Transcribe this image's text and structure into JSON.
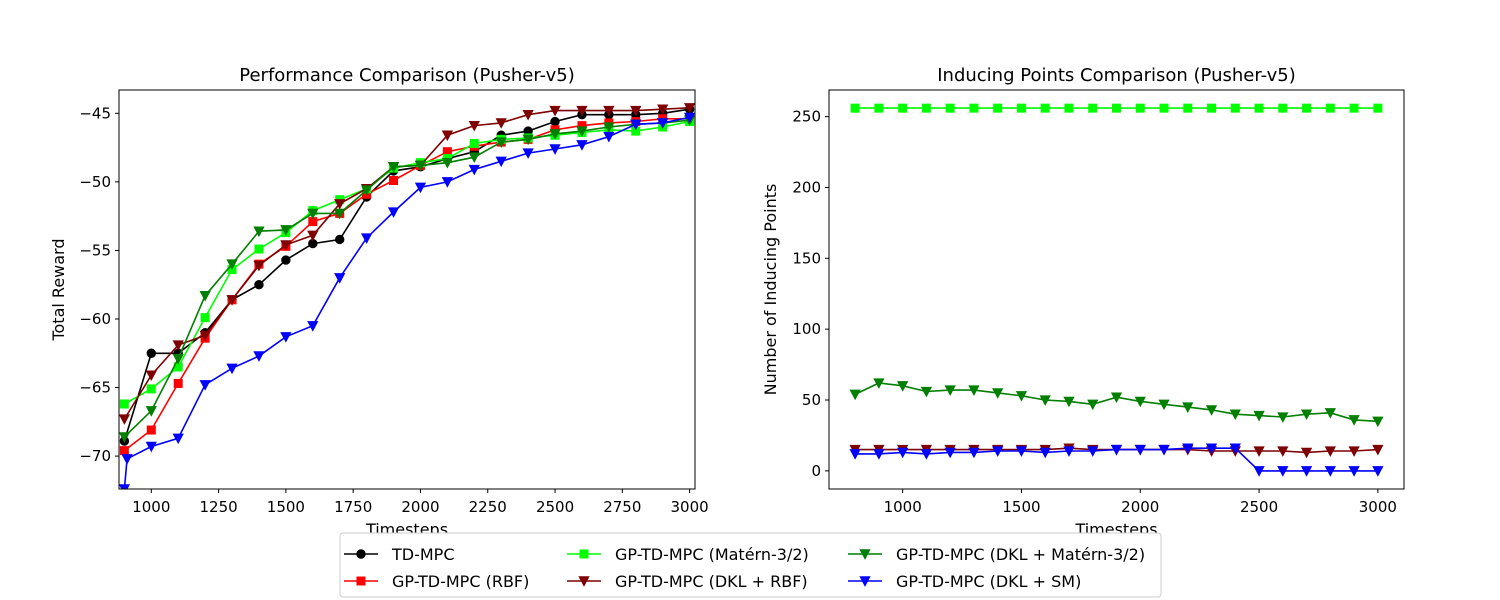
{
  "chart_data": [
    {
      "type": "line",
      "title": "Performance Comparison (Pusher-v5)",
      "xlabel": "Timesteps",
      "ylabel": "Total Reward",
      "xlim": [
        880,
        3020
      ],
      "ylim": [
        -72.4,
        -43.3
      ],
      "xticks": [
        1000,
        1250,
        1500,
        1750,
        2000,
        2250,
        2500,
        2750,
        3000
      ],
      "xtick_labels": [
        "1000",
        "1250",
        "1500",
        "1750",
        "2000",
        "2250",
        "2500",
        "2750",
        "3000"
      ],
      "yticks": [
        -70,
        -65,
        -60,
        -55,
        -50,
        -45
      ],
      "ytick_labels": [
        "−70",
        "−65",
        "−60",
        "−55",
        "−50",
        "−45"
      ],
      "grid": false,
      "series": [
        {
          "name": "TD-MPC",
          "color": "#000000",
          "marker": "circle",
          "x": [
            900,
            1000,
            1100,
            1200,
            1300,
            1400,
            1500,
            1600,
            1700,
            1800,
            1900,
            2000,
            2100,
            2200,
            2300,
            2400,
            2500,
            2600,
            2700,
            2800,
            2900,
            3000
          ],
          "y": [
            -68.9,
            -62.5,
            -62.5,
            -61.0,
            -58.6,
            -57.5,
            -55.7,
            -54.5,
            -54.2,
            -51.1,
            -49.2,
            -48.9,
            -48.3,
            -47.8,
            -46.6,
            -46.3,
            -45.6,
            -45.1,
            -45.1,
            -45.1,
            -45.0,
            -44.7
          ]
        },
        {
          "name": "GP-TD-MPC (RBF)",
          "color": "#ff0000",
          "marker": "square",
          "x": [
            900,
            1000,
            1100,
            1200,
            1300,
            1400,
            1500,
            1600,
            1700,
            1800,
            1900,
            2000,
            2100,
            2200,
            2300,
            2400,
            2500,
            2600,
            2700,
            2800,
            2900,
            3000
          ],
          "y": [
            -69.6,
            -68.1,
            -64.7,
            -61.4,
            -58.6,
            -56.0,
            -54.7,
            -52.9,
            -52.3,
            -50.9,
            -49.9,
            -48.8,
            -47.8,
            -47.4,
            -47.1,
            -46.9,
            -46.2,
            -45.9,
            -45.7,
            -45.6,
            -45.4,
            -45.4
          ]
        },
        {
          "name": "GP-TD-MPC (Matérn-3/2)",
          "color": "#00ff00",
          "marker": "square",
          "x": [
            900,
            1000,
            1100,
            1200,
            1300,
            1400,
            1500,
            1600,
            1700,
            1800,
            1900,
            2000,
            2100,
            2200,
            2300,
            2400,
            2500,
            2600,
            2700,
            2800,
            2900,
            3000
          ],
          "y": [
            -66.2,
            -65.1,
            -63.5,
            -59.9,
            -56.4,
            -54.9,
            -53.7,
            -52.1,
            -51.3,
            -50.5,
            -49.0,
            -48.6,
            -48.3,
            -47.2,
            -46.9,
            -46.8,
            -46.6,
            -46.4,
            -46.2,
            -46.3,
            -46.0,
            -45.6
          ]
        },
        {
          "name": "GP-TD-MPC (DKL + RBF)",
          "color": "#7f0000",
          "marker": "triangle-down",
          "x": [
            900,
            1000,
            1100,
            1200,
            1300,
            1400,
            1500,
            1600,
            1700,
            1800,
            1900,
            2000,
            2100,
            2200,
            2300,
            2400,
            2500,
            2600,
            2700,
            2800,
            2900,
            3000
          ],
          "y": [
            -67.3,
            -64.1,
            -61.9,
            -61.2,
            -58.6,
            -56.1,
            -54.6,
            -53.9,
            -51.6,
            -50.5,
            -48.9,
            -48.8,
            -46.6,
            -45.9,
            -45.7,
            -45.1,
            -44.8,
            -44.8,
            -44.8,
            -44.8,
            -44.7,
            -44.6
          ]
        },
        {
          "name": "GP-TD-MPC (DKL + Matérn-3/2)",
          "color": "#007f00",
          "marker": "triangle-down",
          "x": [
            900,
            1000,
            1100,
            1200,
            1300,
            1400,
            1500,
            1600,
            1700,
            1800,
            1900,
            2000,
            2100,
            2200,
            2300,
            2400,
            2500,
            2600,
            2700,
            2800,
            2900,
            3000
          ],
          "y": [
            -68.6,
            -66.7,
            -62.9,
            -58.3,
            -56.0,
            -53.6,
            -53.5,
            -52.3,
            -52.3,
            -50.6,
            -48.9,
            -48.8,
            -48.6,
            -48.2,
            -47.1,
            -46.9,
            -46.5,
            -46.3,
            -46.0,
            -45.8,
            -45.7,
            -45.5
          ]
        },
        {
          "name": "GP-TD-MPC (DKL + SM)",
          "color": "#0000ff",
          "marker": "triangle-down",
          "x": [
            900,
            910,
            1000,
            1100,
            1200,
            1300,
            1400,
            1500,
            1600,
            1700,
            1800,
            1900,
            2000,
            2100,
            2200,
            2300,
            2400,
            2500,
            2600,
            2700,
            2800,
            2900,
            3000
          ],
          "y": [
            -72.4,
            -70.2,
            -69.3,
            -68.7,
            -64.8,
            -63.6,
            -62.7,
            -61.3,
            -60.5,
            -57.0,
            -54.1,
            -52.2,
            -50.4,
            -50.0,
            -49.1,
            -48.5,
            -47.9,
            -47.6,
            -47.3,
            -46.7,
            -45.8,
            -45.7,
            -45.3
          ]
        }
      ]
    },
    {
      "type": "line",
      "title": "Inducing Points Comparison (Pusher-v5)",
      "xlabel": "Timesteps",
      "ylabel": "Number of Inducing Points",
      "xlim": [
        690,
        3110
      ],
      "ylim": [
        -12.8,
        268.8
      ],
      "xticks": [
        1000,
        1500,
        2000,
        2500,
        3000
      ],
      "xtick_labels": [
        "1000",
        "1500",
        "2000",
        "2500",
        "3000"
      ],
      "yticks": [
        0,
        50,
        100,
        150,
        200,
        250
      ],
      "ytick_labels": [
        "0",
        "50",
        "100",
        "150",
        "200",
        "250"
      ],
      "grid": false,
      "series": [
        {
          "name": "GP-TD-MPC (Matérn-3/2)",
          "color": "#00ff00",
          "marker": "square",
          "x": [
            800,
            900,
            1000,
            1100,
            1200,
            1300,
            1400,
            1500,
            1600,
            1700,
            1800,
            1900,
            2000,
            2100,
            2200,
            2300,
            2400,
            2500,
            2600,
            2700,
            2800,
            2900,
            3000
          ],
          "y": [
            256,
            256,
            256,
            256,
            256,
            256,
            256,
            256,
            256,
            256,
            256,
            256,
            256,
            256,
            256,
            256,
            256,
            256,
            256,
            256,
            256,
            256,
            256
          ]
        },
        {
          "name": "GP-TD-MPC (DKL + Matérn-3/2)",
          "color": "#007f00",
          "marker": "triangle-down",
          "x": [
            800,
            900,
            1000,
            1100,
            1200,
            1300,
            1400,
            1500,
            1600,
            1700,
            1800,
            1900,
            2000,
            2100,
            2200,
            2300,
            2400,
            2500,
            2600,
            2700,
            2800,
            2900,
            3000
          ],
          "y": [
            54,
            62,
            60,
            56,
            57,
            57,
            55,
            53,
            50,
            49,
            47,
            52,
            49,
            47,
            45,
            43,
            40,
            39,
            38,
            40,
            41,
            36,
            35
          ]
        },
        {
          "name": "GP-TD-MPC (DKL + RBF)",
          "color": "#7f0000",
          "marker": "triangle-down",
          "x": [
            800,
            900,
            1000,
            1100,
            1200,
            1300,
            1400,
            1500,
            1600,
            1700,
            1800,
            1900,
            2000,
            2100,
            2200,
            2300,
            2400,
            2500,
            2600,
            2700,
            2800,
            2900,
            3000
          ],
          "y": [
            15,
            15,
            15,
            15,
            15,
            15,
            15,
            15,
            15,
            16,
            15,
            15,
            15,
            15,
            15,
            14,
            14,
            14,
            14,
            13,
            14,
            14,
            15
          ]
        },
        {
          "name": "GP-TD-MPC (DKL + SM)",
          "color": "#0000ff",
          "marker": "triangle-down",
          "x": [
            800,
            900,
            1000,
            1100,
            1200,
            1300,
            1400,
            1500,
            1600,
            1700,
            1800,
            1900,
            2000,
            2100,
            2200,
            2300,
            2400,
            2500,
            2600,
            2700,
            2800,
            2900,
            3000
          ],
          "y": [
            12,
            12,
            13,
            12,
            13,
            13,
            14,
            14,
            13,
            14,
            14,
            15,
            15,
            15,
            16,
            16,
            16,
            0,
            0,
            0,
            0,
            0,
            0
          ]
        }
      ]
    }
  ],
  "legend": {
    "placement": "bottom-center",
    "entries": [
      {
        "label": "TD-MPC",
        "color": "#000000",
        "marker": "circle"
      },
      {
        "label": "GP-TD-MPC (RBF)",
        "color": "#ff0000",
        "marker": "square"
      },
      {
        "label": "GP-TD-MPC (Matérn-3/2)",
        "color": "#00ff00",
        "marker": "square"
      },
      {
        "label": "GP-TD-MPC (DKL + RBF)",
        "color": "#7f0000",
        "marker": "triangle-down"
      },
      {
        "label": "GP-TD-MPC (DKL + Matérn-3/2)",
        "color": "#007f00",
        "marker": "triangle-down"
      },
      {
        "label": "GP-TD-MPC (DKL + SM)",
        "color": "#0000ff",
        "marker": "triangle-down"
      }
    ]
  }
}
